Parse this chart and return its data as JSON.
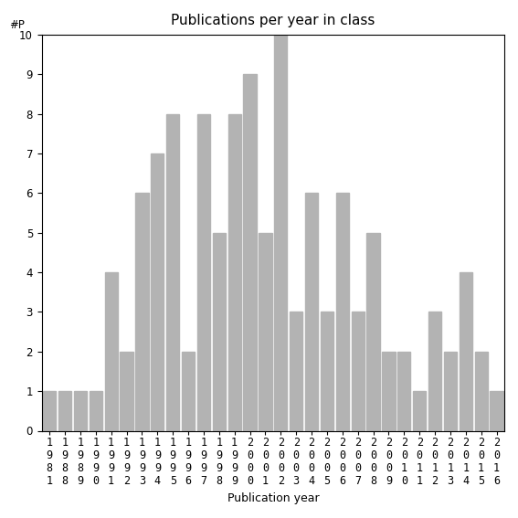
{
  "title": "Publications per year in class",
  "xlabel": "Publication year",
  "ylabel": "#P",
  "categories": [
    "1981",
    "1988",
    "1989",
    "1990",
    "1991",
    "1992",
    "1993",
    "1994",
    "1995",
    "1996",
    "1997",
    "1998",
    "1999",
    "2000",
    "2001",
    "2002",
    "2003",
    "2004",
    "2005",
    "2006",
    "2007",
    "2008",
    "2009",
    "2010",
    "2011",
    "2012",
    "2013",
    "2014",
    "2015",
    "2016"
  ],
  "values": [
    1,
    1,
    1,
    1,
    4,
    2,
    6,
    7,
    8,
    2,
    8,
    5,
    8,
    9,
    5,
    10,
    3,
    6,
    3,
    6,
    3,
    5,
    2,
    2,
    1,
    3,
    2,
    4,
    2,
    1
  ],
  "bar_color": "#b3b3b3",
  "bar_edgecolor": "#b3b3b3",
  "ylim": [
    0,
    10
  ],
  "yticks": [
    0,
    1,
    2,
    3,
    4,
    5,
    6,
    7,
    8,
    9,
    10
  ],
  "title_fontsize": 11,
  "label_fontsize": 9,
  "tick_fontsize": 8.5
}
